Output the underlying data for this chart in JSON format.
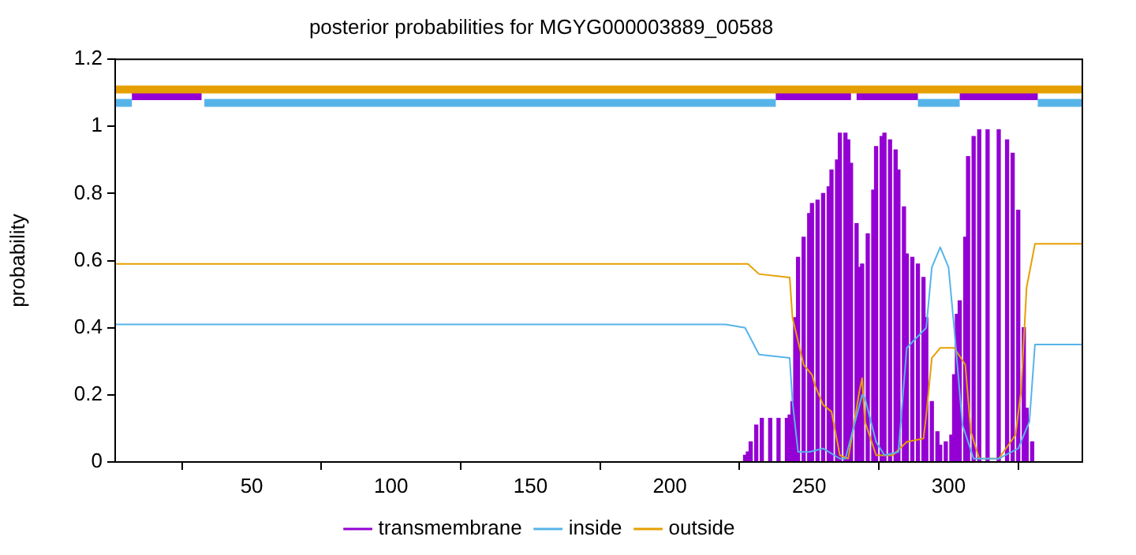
{
  "chart_data": {
    "type": "line",
    "title": "posterior probabilities for MGYG000003889_00588",
    "ylabel": "probability",
    "xlim": [
      1,
      348
    ],
    "ylim": [
      0,
      1.2
    ],
    "xticks": [
      50,
      100,
      150,
      200,
      250,
      300
    ],
    "yticks": [
      0,
      0.2,
      0.4,
      0.6,
      0.8,
      1,
      1.2
    ],
    "legend": "bottom",
    "grid": false,
    "series": [
      {
        "name": "transmembrane",
        "type": "bar",
        "color": "#9400d3",
        "x": [
          227,
          228,
          229,
          231,
          233,
          236,
          239,
          242,
          243,
          244,
          245,
          246,
          248,
          250,
          251,
          253,
          255,
          257,
          258,
          260,
          261,
          263,
          264,
          265,
          267,
          268,
          269,
          271,
          273,
          274,
          276,
          277,
          279,
          281,
          282,
          284,
          285,
          287,
          289,
          291,
          292,
          294,
          296,
          297,
          299,
          301,
          302,
          303,
          304,
          306,
          307,
          309,
          311,
          314,
          318,
          321,
          323,
          325,
          327,
          328,
          330
        ],
        "values": [
          0.02,
          0.03,
          0.06,
          0.11,
          0.13,
          0.13,
          0.13,
          0.13,
          0.14,
          0.18,
          0.43,
          0.61,
          0.67,
          0.74,
          0.77,
          0.78,
          0.8,
          0.82,
          0.87,
          0.9,
          0.98,
          0.98,
          0.96,
          0.89,
          0.71,
          0.58,
          0.59,
          0.68,
          0.81,
          0.94,
          0.97,
          0.98,
          0.96,
          0.93,
          0.87,
          0.76,
          0.62,
          0.61,
          0.59,
          0.55,
          0.43,
          0.18,
          0.09,
          0.05,
          0.06,
          0.08,
          0.26,
          0.44,
          0.48,
          0.67,
          0.91,
          0.97,
          0.99,
          0.99,
          0.99,
          0.96,
          0.92,
          0.75,
          0.4,
          0.16,
          0.06
        ]
      },
      {
        "name": "inside",
        "color": "#56b4e9",
        "x": [
          1,
          220,
          227,
          232,
          243,
          244,
          246,
          250,
          255,
          261,
          263,
          269,
          270,
          274,
          277,
          282,
          285,
          292,
          294,
          297,
          300,
          302,
          305,
          309,
          318,
          325,
          329,
          331,
          348
        ],
        "values": [
          0.41,
          0.41,
          0.4,
          0.32,
          0.31,
          0.18,
          0.03,
          0.03,
          0.04,
          0.01,
          0.01,
          0.2,
          0.19,
          0.06,
          0.02,
          0.03,
          0.34,
          0.4,
          0.58,
          0.64,
          0.58,
          0.4,
          0.11,
          0.01,
          0.01,
          0.04,
          0.12,
          0.35,
          0.35
        ]
      },
      {
        "name": "outside",
        "color": "#e69f00",
        "x": [
          1,
          220,
          228,
          232,
          243,
          244,
          248,
          251,
          252,
          255,
          258,
          261,
          264,
          268,
          269,
          270,
          274,
          280,
          285,
          291,
          292,
          294,
          297,
          302,
          306,
          308,
          311,
          318,
          324,
          326,
          328,
          331,
          348
        ],
        "values": [
          0.59,
          0.59,
          0.59,
          0.56,
          0.55,
          0.43,
          0.29,
          0.26,
          0.23,
          0.17,
          0.15,
          0.02,
          0.01,
          0.21,
          0.25,
          0.12,
          0.02,
          0.02,
          0.06,
          0.07,
          0.14,
          0.31,
          0.34,
          0.34,
          0.29,
          0.09,
          0.01,
          0.01,
          0.08,
          0.21,
          0.52,
          0.65,
          0.65
        ]
      },
      {
        "color": "#e69f00",
        "x": [
          1,
          348
        ],
        "values": [
          1.11,
          1.11
        ]
      },
      {
        "color": "#56b4e9",
        "x": [
          1,
          7
        ],
        "values": [
          1.07,
          1.07
        ]
      },
      {
        "color": "#56b4e9",
        "x": [
          33,
          238
        ],
        "values": [
          1.07,
          1.07
        ]
      },
      {
        "color": "#56b4e9",
        "x": [
          289,
          304
        ],
        "values": [
          1.07,
          1.07
        ]
      },
      {
        "color": "#56b4e9",
        "x": [
          332,
          348
        ],
        "values": [
          1.07,
          1.07
        ]
      },
      {
        "color": "#9400d3",
        "x": [
          7,
          32
        ],
        "values": [
          1.09,
          1.09
        ]
      },
      {
        "color": "#9400d3",
        "x": [
          238,
          265
        ],
        "values": [
          1.09,
          1.09
        ]
      },
      {
        "color": "#9400d3",
        "x": [
          267,
          289
        ],
        "values": [
          1.09,
          1.09
        ]
      },
      {
        "color": "#9400d3",
        "x": [
          304,
          332
        ],
        "values": [
          1.09,
          1.09
        ]
      }
    ]
  }
}
